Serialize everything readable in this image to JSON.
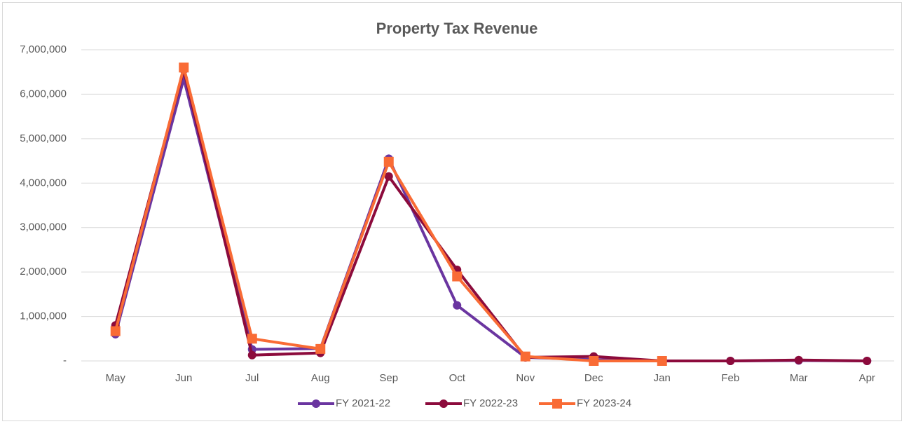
{
  "chart_data": {
    "type": "line",
    "title": "Property Tax Revenue",
    "categories": [
      "May",
      "Jun",
      "Jul",
      "Aug",
      "Sep",
      "Oct",
      "Nov",
      "Dec",
      "Jan",
      "Feb",
      "Mar",
      "Apr"
    ],
    "series": [
      {
        "name": "FY 2021-22",
        "color": "#6a35a0",
        "marker": "circle",
        "values": [
          600000,
          6350000,
          260000,
          280000,
          4550000,
          1250000,
          80000,
          30000,
          0,
          0,
          10000,
          0
        ]
      },
      {
        "name": "FY 2022-23",
        "color": "#8c0b3c",
        "marker": "circle",
        "values": [
          800000,
          6550000,
          130000,
          180000,
          4150000,
          2050000,
          80000,
          100000,
          0,
          0,
          20000,
          0
        ]
      },
      {
        "name": "FY 2023-24",
        "color": "#f96b35",
        "marker": "square",
        "values": [
          670000,
          6600000,
          500000,
          270000,
          4480000,
          1900000,
          100000,
          0,
          0,
          null,
          null,
          null
        ]
      }
    ],
    "ylim": [
      0,
      7000000
    ],
    "yticks": [
      {
        "value": 0,
        "label": "-"
      },
      {
        "value": 1000000,
        "label": "1,000,000"
      },
      {
        "value": 2000000,
        "label": "2,000,000"
      },
      {
        "value": 3000000,
        "label": "3,000,000"
      },
      {
        "value": 4000000,
        "label": "4,000,000"
      },
      {
        "value": 5000000,
        "label": "5,000,000"
      },
      {
        "value": 6000000,
        "label": "6,000,000"
      },
      {
        "value": 7000000,
        "label": "7,000,000"
      }
    ],
    "grid": true,
    "legend": "bottom"
  }
}
